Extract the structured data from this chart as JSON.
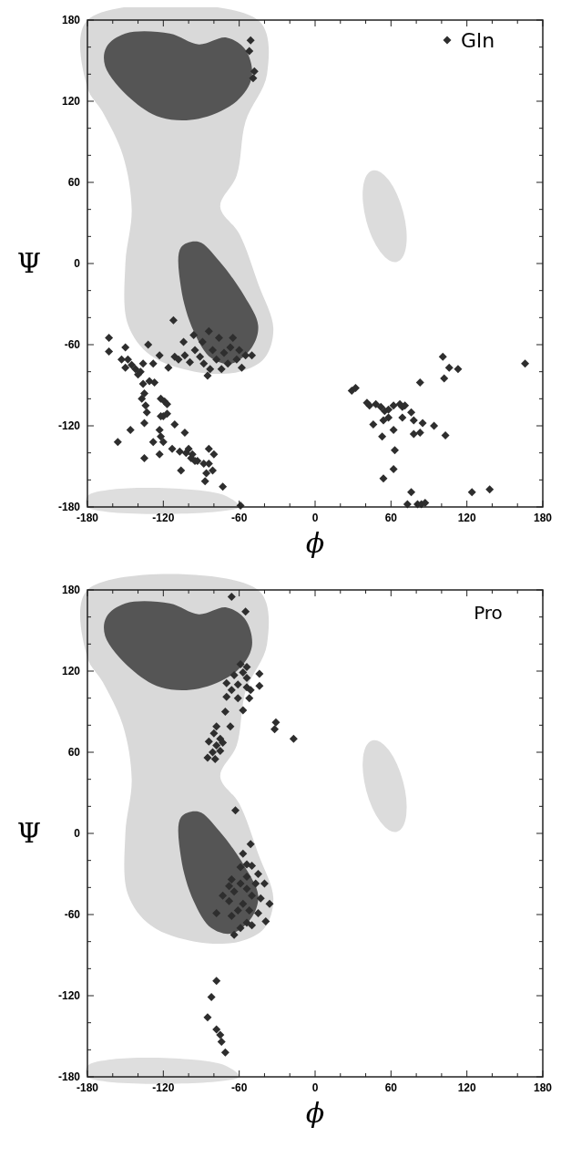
{
  "chart_data": [
    {
      "type": "scatter",
      "xlabel": "ϕ",
      "ylabel": "Ψ",
      "legend": "top right",
      "marker": "diamond",
      "xlim": [
        -180,
        180
      ],
      "ylim": [
        -180,
        180
      ],
      "xticks": [
        -180,
        {
          "value": -160,
          "label": null
        },
        {
          "value": -140,
          "label": null
        },
        -120,
        {
          "value": -100,
          "label": null
        },
        {
          "value": -80,
          "label": null
        },
        -60,
        {
          "value": -40,
          "label": null
        },
        {
          "value": -20,
          "label": null
        },
        0,
        {
          "value": 20,
          "label": null
        },
        {
          "value": 40,
          "label": null
        },
        60,
        {
          "value": 80,
          "label": null
        },
        {
          "value": 100,
          "label": null
        },
        120,
        {
          "value": 140,
          "label": null
        },
        {
          "value": 160,
          "label": null
        },
        180
      ],
      "yticks": [
        -180,
        {
          "value": -160,
          "label": null
        },
        {
          "value": -140,
          "label": null
        },
        -120,
        {
          "value": -100,
          "label": null
        },
        {
          "value": -80,
          "label": null
        },
        -60,
        {
          "value": -40,
          "label": null
        },
        {
          "value": -20,
          "label": null
        },
        0,
        {
          "value": 20,
          "label": null
        },
        {
          "value": 40,
          "label": null
        },
        60,
        {
          "value": 80,
          "label": null
        },
        {
          "value": 100,
          "label": null
        },
        120,
        {
          "value": 140,
          "label": null
        },
        {
          "value": 160,
          "label": null
        },
        180
      ],
      "series": [
        {
          "name": "Gln",
          "color": "#2e2e2e",
          "x": [
            -51,
            -52,
            -48,
            -49,
            -163,
            -163,
            -150,
            -153,
            -148,
            -150,
            -145,
            -142,
            -138,
            -140,
            -136,
            -128,
            -123,
            -116,
            -132,
            -112,
            -111,
            -108,
            -136,
            -131,
            -127,
            -135,
            -137,
            -134,
            -133,
            -122,
            -119,
            -117,
            -120,
            -122,
            -117,
            -135,
            -146,
            -156,
            -128,
            -123,
            -122,
            -120,
            -135,
            -123,
            -111,
            -103,
            -113,
            -107,
            -102,
            -98,
            -100,
            -93,
            -88,
            -86,
            -81,
            -84,
            -80,
            -84,
            -97,
            -95,
            -106,
            -87,
            -73,
            -59,
            -104,
            -103,
            -99,
            -96,
            -95,
            -91,
            -89,
            -88,
            -84,
            -83,
            -81,
            -78,
            -76,
            -74,
            -72,
            -69,
            -67,
            -65,
            -62,
            -58,
            -55,
            -50,
            -85,
            -60,
            101,
            106,
            113,
            102,
            83,
            166,
            29,
            32,
            41,
            43,
            48,
            52,
            55,
            58,
            62,
            67,
            69,
            71,
            76,
            78,
            85,
            54,
            58,
            69,
            46,
            53,
            62,
            78,
            83,
            94,
            103,
            63,
            62,
            54,
            76,
            124,
            138,
            73,
            81,
            84,
            87
          ],
          "values": [
            165,
            157,
            142,
            137,
            -55,
            -65,
            -62,
            -71,
            -71,
            -77,
            -75,
            -78,
            -80,
            -82,
            -74,
            -74,
            -68,
            -77,
            -60,
            -42,
            -69,
            -71,
            -89,
            -87,
            -88,
            -96,
            -100,
            -105,
            -110,
            -100,
            -102,
            -104,
            -113,
            -113,
            -111,
            -118,
            -123,
            -132,
            -132,
            -123,
            -128,
            -132,
            -144,
            -141,
            -119,
            -125,
            -137,
            -139,
            -140,
            -144,
            -137,
            -146,
            -148,
            -155,
            -153,
            -148,
            -141,
            -137,
            -141,
            -146,
            -153,
            -161,
            -165,
            -179,
            -58,
            -68,
            -73,
            -53,
            -64,
            -69,
            -58,
            -74,
            -50,
            -78,
            -64,
            -71,
            -55,
            -78,
            -66,
            -74,
            -62,
            -55,
            -71,
            -77,
            -68,
            -68,
            -83,
            -64,
            -69,
            -77,
            -78,
            -85,
            -88,
            -74,
            -94,
            -92,
            -103,
            -105,
            -104,
            -106,
            -109,
            -108,
            -105,
            -104,
            -106,
            -105,
            -110,
            -116,
            -118,
            -116,
            -114,
            -114,
            -119,
            -128,
            -123,
            -126,
            -125,
            -120,
            -127,
            -138,
            -152,
            -159,
            -169,
            -169,
            -167,
            -178,
            -178,
            -178,
            -177
          ]
        }
      ]
    },
    {
      "type": "scatter",
      "title": "Pro",
      "xlabel": "ϕ",
      "ylabel": "Ψ",
      "marker": "diamond",
      "xlim": [
        -180,
        180
      ],
      "ylim": [
        -180,
        180
      ],
      "xticks": [
        -180,
        {
          "value": -160,
          "label": null
        },
        {
          "value": -140,
          "label": null
        },
        -120,
        {
          "value": -100,
          "label": null
        },
        {
          "value": -80,
          "label": null
        },
        -60,
        {
          "value": -40,
          "label": null
        },
        {
          "value": -20,
          "label": null
        },
        0,
        {
          "value": 20,
          "label": null
        },
        {
          "value": 40,
          "label": null
        },
        60,
        {
          "value": 80,
          "label": null
        },
        {
          "value": 100,
          "label": null
        },
        120,
        {
          "value": 140,
          "label": null
        },
        {
          "value": 160,
          "label": null
        },
        180
      ],
      "yticks": [
        -180,
        {
          "value": -160,
          "label": null
        },
        {
          "value": -140,
          "label": null
        },
        -120,
        {
          "value": -100,
          "label": null
        },
        {
          "value": -80,
          "label": null
        },
        -60,
        {
          "value": -40,
          "label": null
        },
        {
          "value": -20,
          "label": null
        },
        0,
        {
          "value": 20,
          "label": null
        },
        {
          "value": 40,
          "label": null
        },
        60,
        {
          "value": 80,
          "label": null
        },
        {
          "value": 100,
          "label": null
        },
        120,
        {
          "value": 140,
          "label": null
        },
        {
          "value": 160,
          "label": null
        },
        180
      ],
      "series": [
        {
          "color": "#2e2e2e",
          "x": [
            -66,
            -55,
            -44,
            -44,
            -70,
            -59,
            -57,
            -54,
            -52,
            -57,
            -61,
            -66,
            -54,
            -51,
            -61,
            -70,
            -64,
            -54,
            -71,
            -67,
            -78,
            -80,
            -75,
            -84,
            -78,
            -81,
            -85,
            -79,
            -75,
            -73,
            -31,
            -32,
            -17,
            -63,
            -51,
            -57,
            -54,
            -50,
            -45,
            -59,
            -54,
            -47,
            -40,
            -59,
            -66,
            -54,
            -64,
            -50,
            -43,
            -36,
            -57,
            -68,
            -61,
            -52,
            -45,
            -39,
            -54,
            -59,
            -64,
            -50,
            -66,
            -73,
            -68,
            -78,
            -78,
            -82,
            -85,
            -78,
            -75,
            -74,
            -71
          ],
          "values": [
            175,
            164,
            118,
            109,
            111,
            125,
            119,
            115,
            100,
            91,
            110,
            106,
            108,
            106,
            100,
            101,
            117,
            123,
            90,
            79,
            79,
            74,
            70,
            68,
            65,
            60,
            56,
            55,
            61,
            67,
            82,
            77,
            70,
            17,
            -8,
            -15,
            -23,
            -24,
            -30,
            -25,
            -32,
            -37,
            -37,
            -37,
            -34,
            -41,
            -43,
            -46,
            -48,
            -52,
            -52,
            -50,
            -57,
            -57,
            -59,
            -65,
            -66,
            -70,
            -75,
            -68,
            -61,
            -46,
            -39,
            -59,
            -109,
            -121,
            -136,
            -145,
            -149,
            -154,
            -162
          ]
        }
      ]
    }
  ]
}
